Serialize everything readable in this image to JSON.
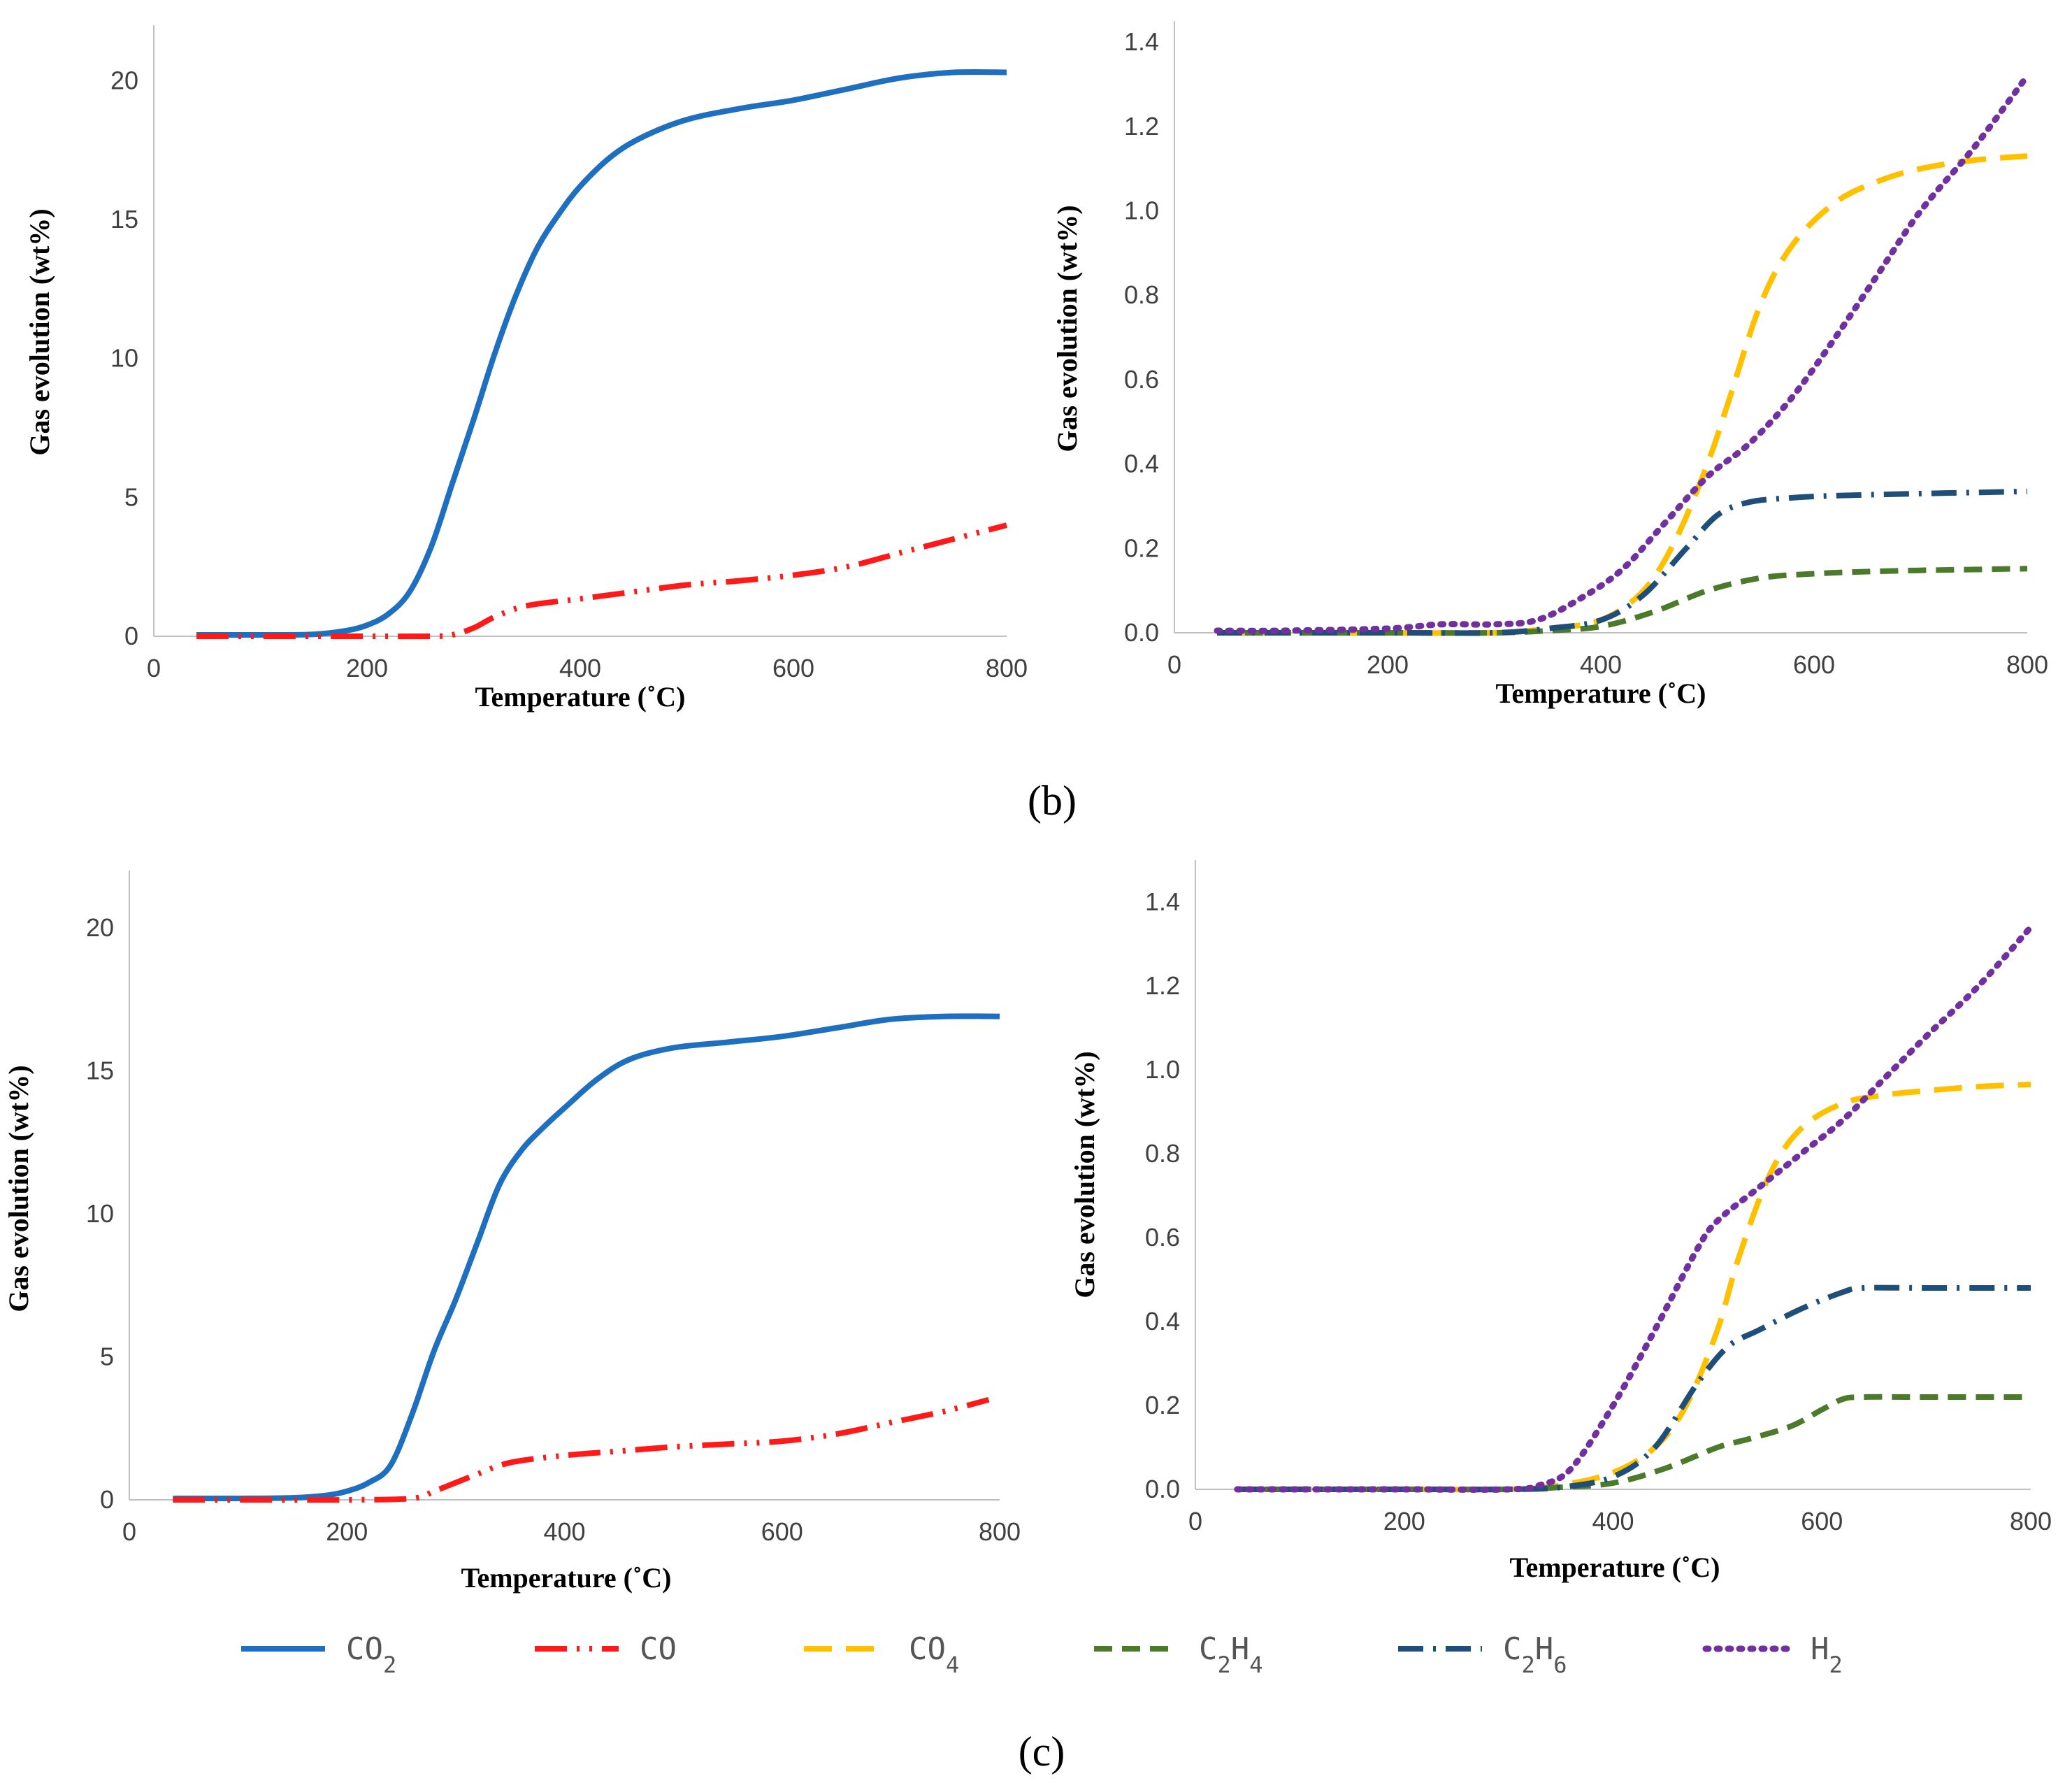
{
  "figure": {
    "panel_labels": [
      "(b)",
      "(c)"
    ],
    "colors": {
      "CO2": "#1f6fc0",
      "CO": "#ff1a1a",
      "CO4": "#ffc000",
      "C2H4": "#4a7a2a",
      "C2H6": "#1f4e79",
      "H2": "#7030a0"
    },
    "legend": [
      {
        "key": "CO2",
        "base": "CO",
        "sub": "2",
        "base2": "",
        "sub2": "",
        "style": "solid"
      },
      {
        "key": "CO",
        "base": "CO",
        "sub": "",
        "base2": "",
        "sub2": "",
        "style": "dashdotdot"
      },
      {
        "key": "CO4",
        "base": "CO",
        "sub": "4",
        "base2": "",
        "sub2": "",
        "style": "dash"
      },
      {
        "key": "C2H4",
        "base": "C",
        "sub": "2",
        "base2": "H",
        "sub2": "4",
        "style": "dashshort"
      },
      {
        "key": "C2H6",
        "base": "C",
        "sub": "2",
        "base2": "H",
        "sub2": "6",
        "style": "dashdot"
      },
      {
        "key": "H2",
        "base": "H",
        "sub": "2",
        "base2": "",
        "sub2": "",
        "style": "dot"
      }
    ]
  },
  "chart_data": [
    {
      "id": "b_left",
      "type": "line",
      "xlabel": "Temperature (˚C)",
      "ylabel": "Gas evolution (wt%)",
      "xlim": [
        0,
        800
      ],
      "ylim": [
        0,
        22
      ],
      "xticks": [
        0,
        200,
        400,
        600,
        800
      ],
      "yticks": [
        0,
        5,
        10,
        15,
        20
      ],
      "ytick_labels": [
        "0",
        "5",
        "10",
        "15",
        "20"
      ],
      "series": [
        {
          "name": "CO2",
          "x": [
            40,
            100,
            150,
            180,
            200,
            220,
            240,
            260,
            280,
            300,
            320,
            340,
            360,
            380,
            400,
            430,
            460,
            500,
            550,
            600,
            650,
            700,
            750,
            800
          ],
          "y": [
            0.05,
            0.05,
            0.07,
            0.2,
            0.4,
            0.8,
            1.6,
            3.2,
            5.5,
            7.8,
            10.2,
            12.3,
            14,
            15.2,
            16.2,
            17.3,
            18,
            18.6,
            19,
            19.3,
            19.7,
            20.1,
            20.3,
            20.3
          ]
        },
        {
          "name": "CO",
          "x": [
            40,
            100,
            200,
            260,
            280,
            300,
            320,
            350,
            400,
            450,
            500,
            550,
            600,
            650,
            700,
            750,
            800
          ],
          "y": [
            0,
            0,
            0,
            0,
            0.05,
            0.3,
            0.7,
            1.1,
            1.35,
            1.6,
            1.85,
            2.0,
            2.2,
            2.5,
            3.0,
            3.5,
            4.0
          ]
        }
      ]
    },
    {
      "id": "b_right",
      "type": "line",
      "xlabel": "Temperature (˚C)",
      "ylabel": "Gas evolution (wt%)",
      "xlim": [
        0,
        800
      ],
      "ylim": [
        0,
        1.45
      ],
      "xticks": [
        0,
        200,
        400,
        600,
        800
      ],
      "yticks": [
        0,
        0.2,
        0.4,
        0.6,
        0.8,
        1.0,
        1.2,
        1.4
      ],
      "ytick_labels": [
        "0.0",
        "0.2",
        "0.4",
        "0.6",
        "0.8",
        "1.0",
        "1.2",
        "1.4"
      ],
      "series": [
        {
          "name": "CO4",
          "x": [
            40,
            200,
            300,
            350,
            400,
            440,
            470,
            500,
            520,
            550,
            580,
            620,
            660,
            700,
            750,
            800
          ],
          "y": [
            0,
            0,
            0,
            0.01,
            0.03,
            0.1,
            0.22,
            0.4,
            0.55,
            0.78,
            0.92,
            1.02,
            1.07,
            1.1,
            1.12,
            1.13
          ]
        },
        {
          "name": "C2H4",
          "x": [
            40,
            200,
            300,
            350,
            400,
            450,
            500,
            550,
            600,
            650,
            700,
            750,
            800
          ],
          "y": [
            0,
            0,
            0,
            0.005,
            0.015,
            0.05,
            0.1,
            0.13,
            0.14,
            0.145,
            0.148,
            0.15,
            0.152
          ]
        },
        {
          "name": "C2H6",
          "x": [
            40,
            200,
            300,
            350,
            400,
            440,
            480,
            510,
            540,
            580,
            620,
            700,
            760,
            800
          ],
          "y": [
            0,
            0,
            0,
            0.01,
            0.03,
            0.09,
            0.2,
            0.28,
            0.31,
            0.32,
            0.325,
            0.33,
            0.333,
            0.335
          ]
        },
        {
          "name": "H2",
          "x": [
            40,
            100,
            200,
            250,
            300,
            340,
            380,
            420,
            460,
            500,
            540,
            580,
            620,
            660,
            700,
            750,
            800
          ],
          "y": [
            0.005,
            0.005,
            0.01,
            0.02,
            0.02,
            0.03,
            0.08,
            0.15,
            0.26,
            0.37,
            0.45,
            0.56,
            0.7,
            0.85,
            1.0,
            1.15,
            1.32
          ]
        }
      ]
    },
    {
      "id": "c_left",
      "type": "line",
      "xlabel": "Temperature (˚C)",
      "ylabel": "Gas evolution (wt%)",
      "xlim": [
        0,
        800
      ],
      "ylim": [
        0,
        22
      ],
      "xticks": [
        0,
        200,
        400,
        600,
        800
      ],
      "yticks": [
        0,
        5,
        10,
        15,
        20
      ],
      "ytick_labels": [
        "0",
        "5",
        "10",
        "15",
        "20"
      ],
      "series": [
        {
          "name": "CO2",
          "x": [
            40,
            100,
            150,
            180,
            200,
            220,
            240,
            260,
            280,
            300,
            320,
            340,
            360,
            380,
            400,
            430,
            460,
            500,
            550,
            600,
            650,
            700,
            750,
            800
          ],
          "y": [
            0.05,
            0.05,
            0.07,
            0.15,
            0.3,
            0.6,
            1.2,
            3.0,
            5.2,
            7.0,
            9.0,
            11.0,
            12.2,
            13.0,
            13.7,
            14.7,
            15.4,
            15.8,
            16.0,
            16.2,
            16.5,
            16.8,
            16.9,
            16.9
          ]
        },
        {
          "name": "CO",
          "x": [
            40,
            100,
            200,
            260,
            280,
            300,
            320,
            350,
            400,
            450,
            500,
            550,
            600,
            650,
            700,
            750,
            790
          ],
          "y": [
            0,
            0,
            0,
            0.05,
            0.3,
            0.6,
            0.9,
            1.3,
            1.55,
            1.7,
            1.85,
            1.95,
            2.05,
            2.3,
            2.7,
            3.1,
            3.5
          ]
        }
      ]
    },
    {
      "id": "c_right",
      "type": "line",
      "xlabel": "Temperature (˚C)",
      "ylabel": "Gas evolution (wt%)",
      "xlim": [
        0,
        800
      ],
      "ylim": [
        0,
        1.5
      ],
      "xticks": [
        0,
        200,
        400,
        600,
        800
      ],
      "yticks": [
        0,
        0.2,
        0.4,
        0.6,
        0.8,
        1.0,
        1.2,
        1.4
      ],
      "ytick_labels": [
        "0.0",
        "0.2",
        "0.4",
        "0.6",
        "0.8",
        "1.0",
        "1.2",
        "1.4"
      ],
      "series": [
        {
          "name": "CO4",
          "x": [
            40,
            200,
            300,
            350,
            400,
            440,
            470,
            500,
            520,
            550,
            580,
            620,
            660,
            700,
            750,
            800
          ],
          "y": [
            0,
            0,
            0,
            0.01,
            0.04,
            0.1,
            0.2,
            0.38,
            0.55,
            0.75,
            0.86,
            0.92,
            0.94,
            0.95,
            0.96,
            0.965
          ]
        },
        {
          "name": "C2H4",
          "x": [
            40,
            200,
            300,
            350,
            400,
            450,
            500,
            530,
            570,
            600,
            620,
            640,
            700,
            800
          ],
          "y": [
            0,
            0,
            0,
            0.005,
            0.015,
            0.05,
            0.1,
            0.12,
            0.15,
            0.19,
            0.215,
            0.22,
            0.22,
            0.22
          ]
        },
        {
          "name": "C2H6",
          "x": [
            40,
            200,
            300,
            350,
            400,
            440,
            480,
            510,
            540,
            580,
            620,
            640,
            700,
            800
          ],
          "y": [
            0,
            0,
            0,
            0.005,
            0.03,
            0.1,
            0.25,
            0.34,
            0.38,
            0.43,
            0.47,
            0.48,
            0.48,
            0.48
          ]
        },
        {
          "name": "H2",
          "x": [
            40,
            100,
            200,
            300,
            330,
            360,
            400,
            440,
            480,
            500,
            540,
            580,
            620,
            660,
            700,
            750,
            800
          ],
          "y": [
            0,
            0,
            0,
            0,
            0.01,
            0.05,
            0.2,
            0.38,
            0.57,
            0.64,
            0.72,
            0.8,
            0.88,
            0.98,
            1.08,
            1.2,
            1.34
          ]
        }
      ]
    }
  ]
}
